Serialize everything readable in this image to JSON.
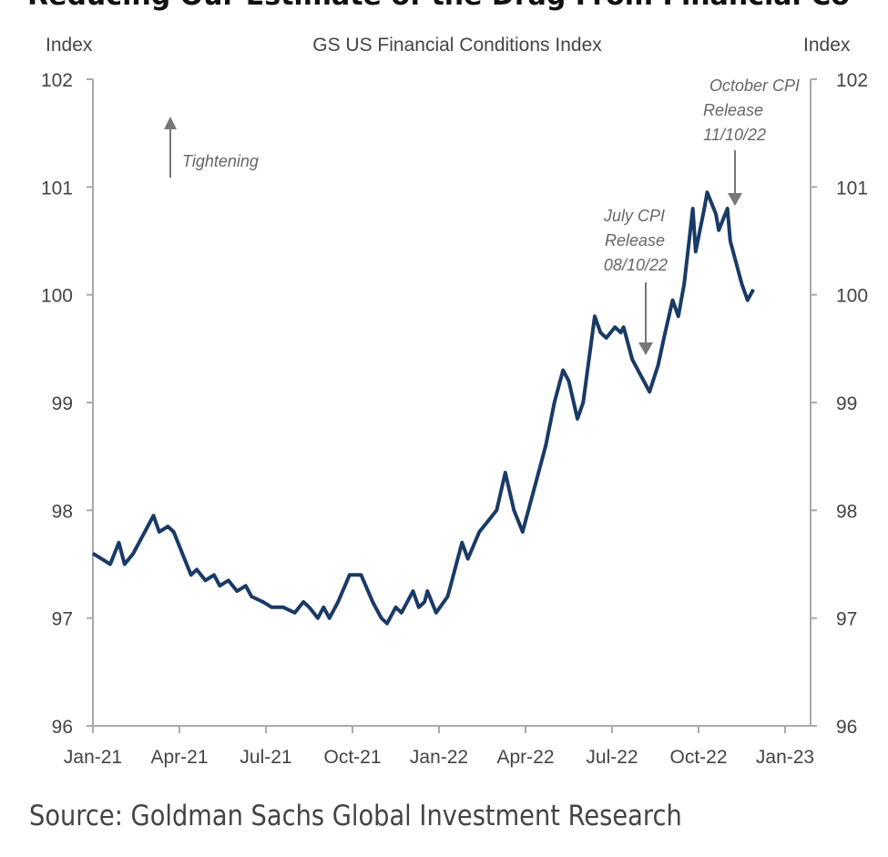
{
  "page_title": "Reducing Our Estimate of the Drag From Financial Co",
  "source": "Source: Goldman Sachs Global Investment Research",
  "chart_data": {
    "type": "line",
    "title": "GS US Financial Conditions Index",
    "ylabel_left": "Index",
    "ylabel_right": "Index",
    "xlabel": "",
    "ylim": [
      96,
      102
    ],
    "yticks": [
      96,
      97,
      98,
      99,
      100,
      101,
      102
    ],
    "xlim_months_since_jan21": [
      0,
      24
    ],
    "xticks": [
      {
        "m": 0,
        "label": "Jan-21"
      },
      {
        "m": 3,
        "label": "Apr-21"
      },
      {
        "m": 6,
        "label": "Jul-21"
      },
      {
        "m": 9,
        "label": "Oct-21"
      },
      {
        "m": 12,
        "label": "Jan-22"
      },
      {
        "m": 15,
        "label": "Apr-22"
      },
      {
        "m": 18,
        "label": "Jul-22"
      },
      {
        "m": 21,
        "label": "Oct-22"
      },
      {
        "m": 24,
        "label": "Jan-23"
      }
    ],
    "series": [
      {
        "name": "GS US Financial Conditions Index",
        "color": "#1a3a66",
        "x": [
          0,
          0.3,
          0.6,
          0.9,
          1.1,
          1.4,
          1.7,
          2.1,
          2.3,
          2.6,
          2.8,
          3.1,
          3.4,
          3.6,
          3.9,
          4.2,
          4.4,
          4.7,
          5.0,
          5.3,
          5.5,
          5.9,
          6.2,
          6.6,
          7.0,
          7.3,
          7.5,
          7.8,
          8.0,
          8.2,
          8.5,
          8.9,
          9.3,
          9.7,
          10.0,
          10.2,
          10.5,
          10.7,
          11.1,
          11.3,
          11.5,
          11.6,
          11.9,
          12.3,
          12.4,
          12.8,
          13.0,
          13.4,
          13.7,
          14.0,
          14.3,
          14.6,
          14.9,
          15.4,
          15.7,
          16.0,
          16.3,
          16.5,
          16.8,
          17.0,
          17.4,
          17.6,
          17.8,
          18.1,
          18.3,
          18.4,
          18.7,
          19.0,
          19.3,
          19.6,
          19.8,
          20.1,
          20.3,
          20.5,
          20.8,
          20.9,
          21.2,
          21.3,
          21.6,
          21.7,
          22.0,
          22.1,
          22.4,
          22.5,
          22.7,
          22.9
        ],
        "y": [
          97.6,
          97.55,
          97.5,
          97.7,
          97.5,
          97.6,
          97.75,
          97.95,
          97.8,
          97.85,
          97.8,
          97.6,
          97.4,
          97.45,
          97.35,
          97.4,
          97.3,
          97.35,
          97.25,
          97.3,
          97.2,
          97.15,
          97.1,
          97.1,
          97.05,
          97.15,
          97.1,
          97.0,
          97.1,
          97.0,
          97.15,
          97.4,
          97.4,
          97.15,
          97.0,
          96.95,
          97.1,
          97.05,
          97.25,
          97.1,
          97.15,
          97.25,
          97.05,
          97.2,
          97.3,
          97.7,
          97.55,
          97.8,
          97.9,
          98.0,
          98.35,
          98.0,
          97.8,
          98.3,
          98.6,
          99.0,
          99.3,
          99.2,
          98.85,
          99.0,
          99.8,
          99.65,
          99.6,
          99.7,
          99.65,
          99.7,
          99.4,
          99.25,
          99.1,
          99.35,
          99.6,
          99.95,
          99.8,
          100.1,
          100.8,
          100.4,
          100.8,
          100.95,
          100.75,
          100.6,
          100.8,
          100.5,
          100.2,
          100.1,
          99.95,
          100.05
        ]
      }
    ],
    "annotations": [
      {
        "text": "Tightening",
        "arrow": "up"
      },
      {
        "lines": [
          "July CPI",
          "Release",
          "08/10/22"
        ],
        "arrow": "down"
      },
      {
        "lines": [
          "October CPI",
          "Release",
          "11/10/22"
        ],
        "arrow": "down"
      }
    ],
    "grid": false,
    "legend": "none"
  }
}
